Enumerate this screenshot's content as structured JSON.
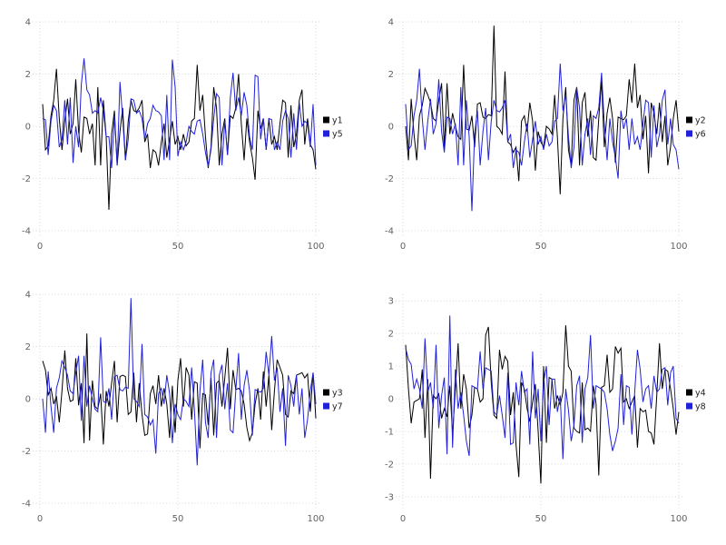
{
  "page": {
    "background": "#ffffff",
    "title": ""
  },
  "colors": {
    "series_black": "#000000",
    "series_blue": "#2121d8",
    "grid": "#d7d7e2",
    "tick_label": "#616161",
    "legend_text": "#1f1f1f"
  },
  "chart_data": [
    {
      "type": "line",
      "title": "",
      "xlabel": "",
      "ylabel": "",
      "grid": true,
      "legend_position": "right",
      "x_ticks": [
        0,
        50,
        100
      ],
      "y_ticks": [
        -4,
        -2,
        0,
        2,
        4
      ],
      "xlim": [
        0,
        100
      ],
      "ylim": [
        -4,
        4
      ],
      "x_start": 1,
      "x_step": 1,
      "series": [
        {
          "name": "y1",
          "color": "#000000",
          "values": [
            0.85,
            -0.9,
            -0.75,
            0.4,
            1.0,
            2.2,
            0.3,
            -0.9,
            0.2,
            1.05,
            -0.3,
            0.1,
            1.8,
            -0.2,
            -1.0,
            0.35,
            0.3,
            -0.3,
            0.1,
            -1.5,
            1.5,
            -1.5,
            1.0,
            -0.4,
            -3.2,
            -0.3,
            0.6,
            -1.5,
            -0.2,
            0.7,
            -1.3,
            0.2,
            1.0,
            0.6,
            0.55,
            0.7,
            1.0,
            -0.6,
            -0.3,
            -1.6,
            -0.9,
            -1.0,
            -1.5,
            -0.6,
            0.1,
            -1.2,
            -0.5,
            0.2,
            -0.7,
            -0.4,
            -0.9,
            -0.3,
            -0.75,
            -0.6,
            0.2,
            0.3,
            2.35,
            0.6,
            1.2,
            -0.4,
            -1.6,
            -0.8,
            1.5,
            0.7,
            -1.5,
            -0.3,
            0.3,
            -1.1,
            0.4,
            0.3,
            0.7,
            2.0,
            0.1,
            -1.3,
            0.3,
            -0.6,
            -1.2,
            -2.05,
            0.6,
            -0.1,
            0.3,
            -0.9,
            0.3,
            -0.7,
            -0.4,
            -0.9,
            0.1,
            1.0,
            0.9,
            -1.2,
            0.8,
            -0.8,
            -0.3,
            1.0,
            1.4,
            -0.7,
            0.3,
            -0.7,
            -0.9,
            -1.65
          ]
        },
        {
          "name": "y5",
          "color": "#2121d8",
          "values": [
            0.3,
            0.25,
            -1.1,
            0.2,
            0.8,
            0.6,
            -0.8,
            -0.5,
            1.0,
            -0.7,
            1.1,
            -1.4,
            0.0,
            -0.8,
            1.6,
            2.6,
            1.4,
            1.2,
            0.5,
            0.6,
            0.5,
            1.1,
            0.6,
            -0.4,
            -0.4,
            -1.6,
            0.4,
            -1.5,
            1.7,
            0.3,
            -1.3,
            -0.5,
            1.05,
            1.0,
            0.5,
            0.6,
            0.3,
            -0.5,
            0.1,
            0.3,
            0.8,
            0.6,
            0.55,
            0.4,
            -1.3,
            1.2,
            -1.3,
            2.55,
            1.5,
            -1.15,
            -0.6,
            -0.9,
            -0.6,
            0.0,
            -0.2,
            -0.3,
            0.2,
            0.25,
            -0.3,
            -1.0,
            -1.55,
            -0.9,
            0.3,
            1.25,
            1.1,
            -1.5,
            0.2,
            -1.1,
            1.1,
            2.05,
            0.6,
            1.1,
            0.4,
            1.3,
            0.8,
            -0.4,
            -0.9,
            1.95,
            1.9,
            -0.5,
            0.3,
            -0.9,
            0.3,
            0.25,
            -0.9,
            -0.6,
            -0.9,
            0.2,
            0.6,
            0.3,
            -1.2,
            0.5,
            -0.9,
            0.9,
            0.0,
            0.2,
            0.1,
            -0.8,
            0.85,
            -1.5
          ]
        }
      ]
    },
    {
      "type": "line",
      "title": "",
      "xlabel": "",
      "ylabel": "",
      "grid": true,
      "legend_position": "right",
      "x_ticks": [
        0,
        50,
        100
      ],
      "y_ticks": [
        -4,
        -2,
        0,
        2,
        4
      ],
      "xlim": [
        0,
        100
      ],
      "ylim": [
        -4,
        4
      ],
      "x_start": 1,
      "x_step": 1,
      "series": [
        {
          "name": "y2",
          "color": "#000000",
          "values": [
            0.0,
            -1.3,
            1.05,
            -0.3,
            -1.3,
            0.4,
            0.8,
            1.45,
            1.2,
            0.9,
            0.3,
            0.2,
            1.0,
            1.65,
            -0.85,
            1.65,
            -0.3,
            0.5,
            0.0,
            -0.4,
            -0.5,
            2.35,
            -0.1,
            -0.15,
            0.4,
            -0.8,
            0.85,
            0.9,
            0.35,
            0.3,
            0.45,
            0.4,
            3.85,
            0.0,
            -0.1,
            -0.3,
            2.1,
            -0.6,
            -0.7,
            -1.0,
            -0.8,
            -2.1,
            0.2,
            0.4,
            -0.2,
            0.9,
            0.2,
            -1.7,
            -0.2,
            -0.6,
            -0.8,
            0.0,
            -0.1,
            -0.3,
            1.2,
            -0.4,
            -2.6,
            0.3,
            1.5,
            -0.9,
            -1.5,
            1.0,
            1.5,
            -1.5,
            0.9,
            1.3,
            -0.4,
            0.6,
            -1.2,
            -1.3,
            0.3,
            1.75,
            -0.8,
            0.5,
            1.1,
            0.3,
            -1.4,
            0.35,
            0.3,
            0.25,
            0.4,
            1.8,
            0.9,
            2.4,
            0.7,
            1.2,
            -0.5,
            0.4,
            -1.8,
            0.9,
            0.5,
            -0.3,
            0.9,
            -0.6,
            0.4,
            -1.5,
            -0.8,
            0.3,
            1.0,
            -0.2
          ]
        },
        {
          "name": "y6",
          "color": "#2121d8",
          "values": [
            0.85,
            -0.9,
            -0.75,
            0.4,
            1.0,
            2.2,
            0.3,
            -0.9,
            0.2,
            1.05,
            -0.3,
            0.1,
            1.8,
            -0.2,
            -1.0,
            0.35,
            0.3,
            -0.3,
            0.1,
            -1.5,
            1.5,
            -1.5,
            1.0,
            -0.4,
            -3.25,
            -0.3,
            0.6,
            -1.5,
            -0.2,
            0.7,
            -1.3,
            0.2,
            1.0,
            0.6,
            0.55,
            0.7,
            1.0,
            -0.6,
            -0.3,
            -1.6,
            -0.9,
            -1.0,
            -1.5,
            -0.6,
            0.1,
            -1.2,
            -0.5,
            0.2,
            -0.7,
            -0.4,
            -0.9,
            -0.3,
            -0.75,
            -0.6,
            0.2,
            0.3,
            2.4,
            0.6,
            1.2,
            -0.4,
            -1.6,
            -0.8,
            1.5,
            0.7,
            -1.5,
            -0.3,
            0.3,
            -1.1,
            0.4,
            0.3,
            0.7,
            2.05,
            0.1,
            -1.3,
            0.3,
            -0.6,
            -1.2,
            -2.0,
            0.6,
            -0.1,
            0.3,
            -0.9,
            0.3,
            -0.7,
            -0.4,
            -0.9,
            0.1,
            1.0,
            0.9,
            -1.2,
            0.8,
            -0.8,
            -0.3,
            1.0,
            1.4,
            -0.7,
            0.3,
            -0.7,
            -0.9,
            -1.65
          ]
        }
      ]
    },
    {
      "type": "line",
      "title": "",
      "xlabel": "",
      "ylabel": "",
      "grid": true,
      "legend_position": "right",
      "x_ticks": [
        0,
        50,
        100
      ],
      "y_ticks": [
        -4,
        -2,
        0,
        2,
        4
      ],
      "xlim": [
        0,
        100
      ],
      "ylim": [
        -4,
        4
      ],
      "x_start": 1,
      "x_step": 1,
      "series": [
        {
          "name": "y3",
          "color": "#000000",
          "values": [
            1.45,
            1.1,
            0.15,
            0.4,
            -0.2,
            0.1,
            -0.9,
            0.3,
            1.85,
            0.4,
            -0.1,
            -0.05,
            1.55,
            -0.25,
            0.6,
            -1.7,
            2.5,
            -1.6,
            0.7,
            -0.3,
            -0.4,
            0.2,
            -1.75,
            0.3,
            -0.3,
            0.6,
            1.45,
            -0.9,
            0.85,
            0.9,
            0.85,
            -0.6,
            -0.5,
            1.0,
            -0.9,
            0.6,
            -0.6,
            -1.4,
            -1.35,
            0.2,
            0.5,
            -0.2,
            0.9,
            -0.3,
            0.4,
            -0.2,
            -1.5,
            0.5,
            -1.3,
            0.7,
            1.55,
            -0.3,
            1.2,
            0.9,
            -0.8,
            0.65,
            0.6,
            -1.9,
            0.2,
            0.15,
            -1.0,
            0.8,
            -1.4,
            0.6,
            0.7,
            -0.3,
            0.8,
            1.95,
            -0.4,
            1.1,
            0.35,
            0.4,
            0.3,
            -0.2,
            -1.1,
            -1.6,
            -1.3,
            -0.2,
            0.4,
            -0.8,
            1.05,
            -0.3,
            0.9,
            -1.2,
            0.3,
            1.5,
            1.2,
            0.9,
            -0.6,
            -0.7,
            0.3,
            0.2,
            0.9,
            0.95,
            1.0,
            0.8,
            0.95,
            -0.5,
            1.0,
            -0.75
          ]
        },
        {
          "name": "y7",
          "color": "#2121d8",
          "values": [
            0.0,
            -1.3,
            1.05,
            -0.3,
            -1.3,
            0.4,
            0.8,
            1.45,
            1.2,
            0.9,
            0.3,
            0.2,
            1.0,
            1.65,
            -0.85,
            1.65,
            -0.3,
            0.5,
            0.0,
            -0.4,
            -0.5,
            2.35,
            -0.1,
            -0.15,
            0.4,
            -0.8,
            0.85,
            0.9,
            0.35,
            0.3,
            0.45,
            0.4,
            3.85,
            0.0,
            -0.1,
            -0.3,
            2.1,
            -0.6,
            -0.7,
            -1.0,
            -0.8,
            -2.1,
            0.2,
            0.4,
            -0.2,
            0.9,
            0.2,
            -1.7,
            -0.2,
            -0.6,
            -0.8,
            0.0,
            -0.1,
            -0.3,
            1.2,
            -0.4,
            -2.55,
            0.3,
            1.5,
            -0.9,
            -1.5,
            1.0,
            1.5,
            -1.5,
            0.9,
            1.3,
            -0.4,
            0.6,
            -1.2,
            -1.3,
            0.3,
            1.75,
            -0.8,
            0.5,
            1.1,
            0.3,
            -1.4,
            0.35,
            0.3,
            0.25,
            0.4,
            1.8,
            0.9,
            2.4,
            0.7,
            1.2,
            -0.5,
            0.4,
            -1.8,
            0.9,
            0.5,
            -0.3,
            0.9,
            -0.6,
            0.4,
            -1.5,
            -0.8,
            0.3,
            1.0,
            -0.2
          ]
        }
      ]
    },
    {
      "type": "line",
      "title": "",
      "xlabel": "",
      "ylabel": "",
      "grid": true,
      "legend_position": "right",
      "x_ticks": [
        0,
        50,
        100
      ],
      "y_ticks": [
        -3,
        -2,
        -1,
        0,
        1,
        2,
        3
      ],
      "xlim": [
        0,
        100
      ],
      "ylim": [
        -3.2,
        3.2
      ],
      "x_start": 1,
      "x_step": 1,
      "series": [
        {
          "name": "y4",
          "color": "#000000",
          "values": [
            1.65,
            0.3,
            -0.75,
            -0.1,
            -0.05,
            0.0,
            0.9,
            -1.2,
            0.6,
            -2.45,
            0.1,
            0.0,
            0.15,
            -0.6,
            -0.3,
            -0.55,
            0.4,
            -1.1,
            0.3,
            1.7,
            -0.3,
            0.75,
            0.3,
            -0.9,
            -0.5,
            0.35,
            0.3,
            -0.1,
            0.0,
            1.95,
            2.2,
            0.5,
            -0.5,
            -0.6,
            1.5,
            0.9,
            1.3,
            1.15,
            -0.5,
            0.2,
            -1.4,
            -2.4,
            0.5,
            0.3,
            -0.3,
            -0.7,
            -0.1,
            0.45,
            -1.0,
            -2.6,
            1.0,
            -1.35,
            0.65,
            0.6,
            -0.3,
            0.1,
            -0.2,
            0.2,
            2.25,
            1.0,
            0.85,
            -0.9,
            -1.0,
            -1.05,
            0.5,
            -0.95,
            -0.9,
            -1.0,
            0.4,
            -0.15,
            -2.35,
            0.35,
            0.4,
            1.35,
            0.2,
            0.3,
            1.6,
            1.4,
            1.55,
            -0.1,
            0.0,
            -0.3,
            -0.1,
            0.1,
            -1.5,
            -0.3,
            -0.4,
            -0.35,
            -1.0,
            -1.05,
            -1.4,
            0.1,
            1.7,
            0.3,
            0.9,
            0.85,
            0.3,
            -0.3,
            -1.1,
            -0.4
          ]
        },
        {
          "name": "y8",
          "color": "#2121d8",
          "values": [
            1.55,
            1.2,
            1.05,
            0.3,
            0.6,
            0.3,
            -0.3,
            1.85,
            0.2,
            0.5,
            -0.3,
            1.65,
            -0.9,
            0.1,
            0.65,
            -1.7,
            2.55,
            -1.5,
            0.9,
            -0.3,
            0.2,
            -0.5,
            -1.3,
            -1.75,
            0.4,
            0.35,
            0.3,
            1.45,
            0.3,
            0.95,
            0.9,
            0.85,
            -0.4,
            -0.5,
            0.1,
            -0.5,
            -1.2,
            0.8,
            -1.4,
            -1.35,
            0.5,
            -0.2,
            0.85,
            0.2,
            0.3,
            -1.4,
            1.45,
            -0.6,
            0.3,
            -1.3,
            0.5,
            1.0,
            -0.8,
            0.6,
            0.6,
            -0.4,
            0.1,
            -1.85,
            0.3,
            -0.35,
            -1.3,
            -0.8,
            0.4,
            0.7,
            -1.35,
            0.3,
            0.65,
            1.95,
            -0.3,
            0.4,
            0.35,
            0.3,
            0.2,
            -0.3,
            -1.1,
            -1.6,
            -1.3,
            -0.9,
            0.75,
            -0.8,
            0.4,
            0.35,
            -1.1,
            0.2,
            1.5,
            0.9,
            -0.1,
            0.3,
            0.4,
            -0.3,
            0.7,
            0.2,
            0.3,
            0.9,
            0.95,
            -0.2,
            0.8,
            1.0,
            -0.6,
            -0.75
          ]
        }
      ]
    }
  ]
}
